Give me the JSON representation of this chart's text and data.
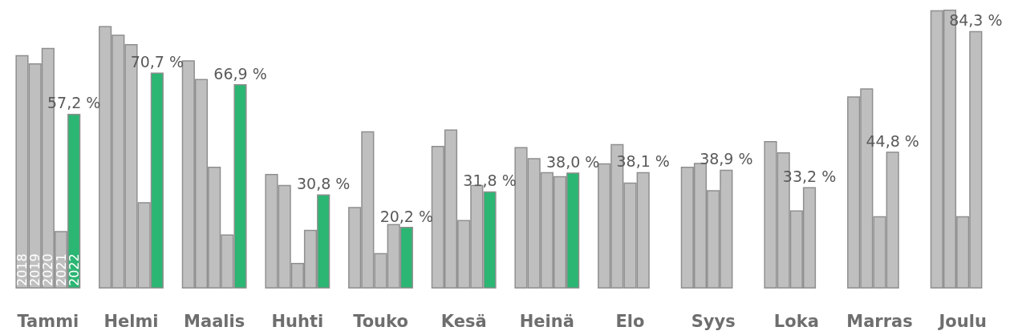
{
  "chart_data": {
    "type": "bar",
    "categories": [
      "Tammi",
      "Helmi",
      "Maalis",
      "Huhti",
      "Touko",
      "Kesä",
      "Heinä",
      "Elo",
      "Syys",
      "Loka",
      "Marras",
      "Joulu"
    ],
    "series": [
      {
        "name": "2018",
        "color": "#bfbfbf",
        "values": [
          76.4,
          85.9,
          74.7,
          37.5,
          26.7,
          46.7,
          46.3,
          41.0,
          39.9,
          48.3,
          62.9,
          91.1
        ]
      },
      {
        "name": "2019",
        "color": "#bfbfbf",
        "values": [
          73.7,
          83.1,
          68.6,
          33.9,
          51.5,
          52.1,
          42.7,
          47.3,
          41.1,
          44.6,
          65.5,
          91.3
        ]
      },
      {
        "name": "2020",
        "color": "#bfbfbf",
        "values": [
          78.8,
          80.0,
          39.9,
          8.4,
          11.6,
          22.4,
          38.1,
          34.7,
          32.2,
          25.6,
          23.7,
          23.7
        ]
      },
      {
        "name": "2021",
        "color": "#bfbfbf",
        "values": [
          18.8,
          28.3,
          17.7,
          19.2,
          21.1,
          33.9,
          36.8,
          38.1,
          38.9,
          33.2,
          44.8,
          84.3
        ],
        "value_labels": [
          null,
          null,
          null,
          null,
          null,
          null,
          null,
          "38,1 %",
          "38,9 %",
          "33,2 %",
          "44,8 %",
          "84,3 %"
        ]
      },
      {
        "name": "2022",
        "color": "#2bb673",
        "values": [
          57.2,
          70.7,
          66.9,
          30.8,
          20.2,
          31.8,
          38.0,
          null,
          null,
          null,
          null,
          null
        ],
        "value_labels": [
          "57,2 %",
          "70,7 %",
          "66,9 %",
          "30,8 %",
          "20,2 %",
          "31,8 %",
          "38,0 %",
          null,
          null,
          null,
          null,
          null
        ]
      }
    ],
    "tick_labels": "x",
    "grid": false,
    "legend": false
  }
}
